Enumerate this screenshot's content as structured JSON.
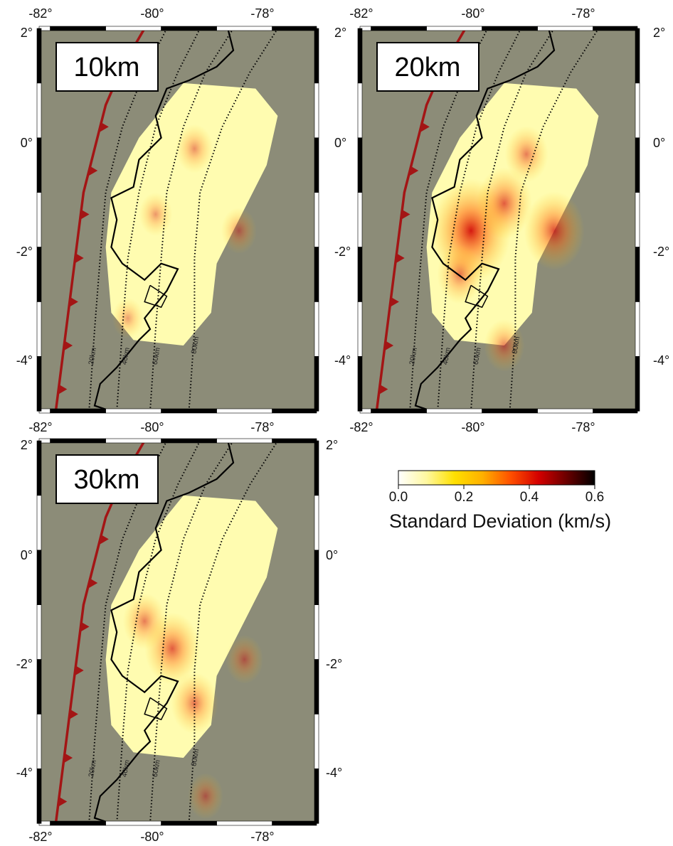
{
  "colors": {
    "background": "#8c8c78",
    "trench": "#a31515",
    "coast": "#000000",
    "colorbar_stops": [
      "#ffffff",
      "#fff8a0",
      "#ffe000",
      "#ffb000",
      "#ff5000",
      "#d40000",
      "#6a0000",
      "#000000"
    ]
  },
  "axes": {
    "lon_labels": [
      "-82°",
      "-80°",
      "-78°"
    ],
    "lat_labels": [
      "2°",
      "0°",
      "-2°",
      "-4°"
    ]
  },
  "panels": [
    {
      "id": "p10",
      "label": "10km"
    },
    {
      "id": "p20",
      "label": "20km"
    },
    {
      "id": "p30",
      "label": "30km"
    }
  ],
  "depth_contours": [
    "20km",
    "40km",
    "60km",
    "80km"
  ],
  "colorbar": {
    "ticks": [
      "0.0",
      "0.2",
      "0.4",
      "0.6"
    ],
    "title": "Standard Deviation (km/s)"
  },
  "hotspots": {
    "p10": [
      [
        -79.4,
        -0.2,
        0.12
      ],
      [
        -80.1,
        -1.4,
        0.08
      ],
      [
        -78.6,
        -1.7,
        0.1
      ],
      [
        -80.6,
        -3.3,
        0.06
      ]
    ],
    "p20": [
      [
        -80.2,
        -1.7,
        0.55
      ],
      [
        -79.6,
        -1.2,
        0.3
      ],
      [
        -78.7,
        -1.7,
        0.35
      ],
      [
        -79.2,
        -0.3,
        0.18
      ],
      [
        -80.4,
        -2.5,
        0.2
      ],
      [
        -79.6,
        -3.8,
        0.15
      ]
    ],
    "p30": [
      [
        -79.8,
        -1.8,
        0.3
      ],
      [
        -79.4,
        -2.8,
        0.22
      ],
      [
        -80.3,
        -1.3,
        0.18
      ],
      [
        -78.5,
        -2.0,
        0.12
      ],
      [
        -79.2,
        -4.5,
        0.1
      ]
    ]
  }
}
